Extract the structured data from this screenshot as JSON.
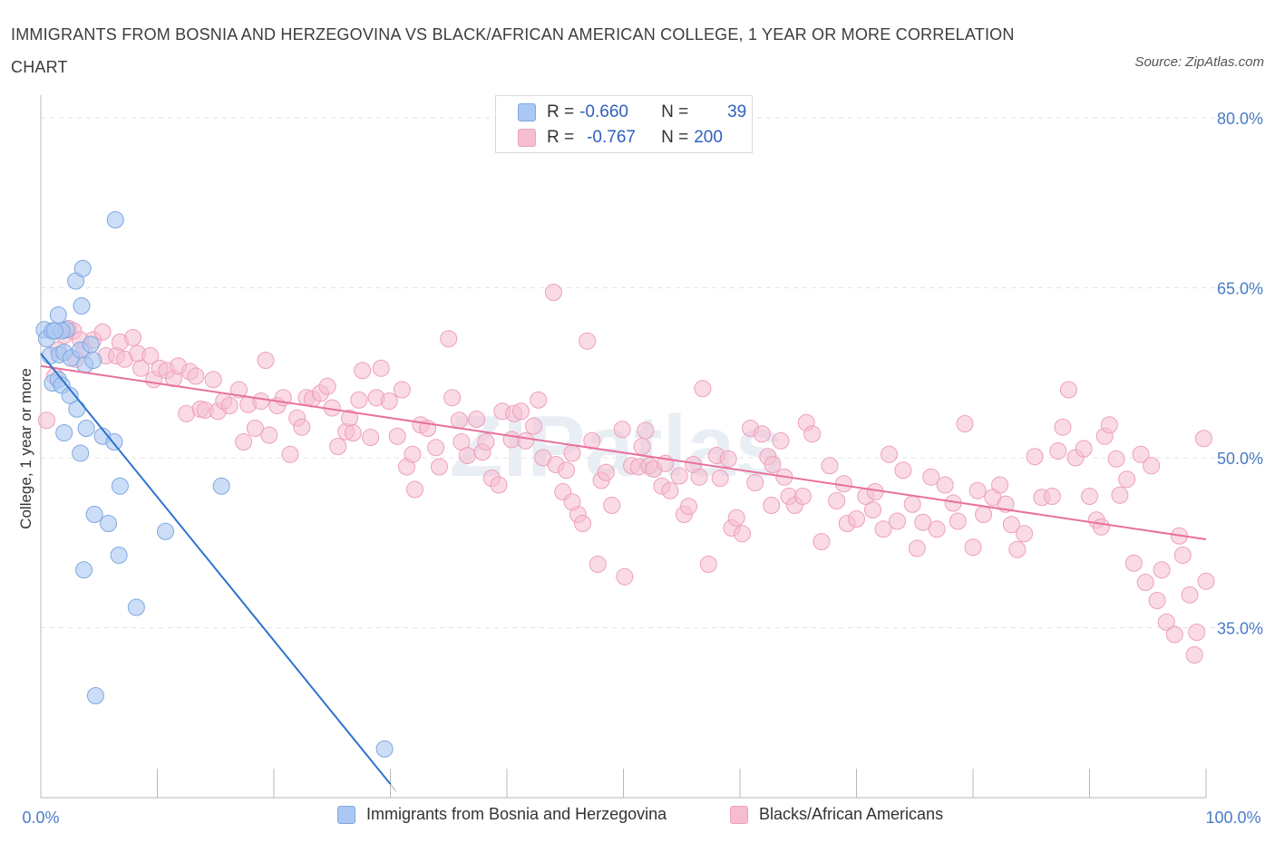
{
  "title": "IMMIGRANTS FROM BOSNIA AND HERZEGOVINA VS BLACK/AFRICAN AMERICAN COLLEGE, 1 YEAR OR MORE CORRELATION CHART",
  "source": "Source: ZipAtlas.com",
  "watermark": "ZIPatlas",
  "legend": {
    "rows": [
      {
        "r_label": "R =",
        "r_value": "-0.660",
        "n_label": "N =",
        "n_value": "39"
      },
      {
        "r_label": "R =",
        "r_value": "-0.767",
        "n_label": "N =",
        "n_value": "200"
      }
    ]
  },
  "bottom_legend": [
    "Immigrants from Bosnia and Herzegovina",
    "Blacks/African Americans"
  ],
  "colors": {
    "blue_fill": "#aac8f2",
    "blue_stroke": "#7fa8e0",
    "blue_line": "#2f74d0",
    "pink_fill": "#f6bdd0",
    "pink_stroke": "#eea0bb",
    "pink_line": "#e8719b",
    "tick_text": "#4a7cc7",
    "grid": "#e3e3e3"
  },
  "chart_data": {
    "type": "scatter",
    "title": "IMMIGRANTS FROM BOSNIA AND HERZEGOVINA VS BLACK/AFRICAN AMERICAN COLLEGE, 1 YEAR OR MORE CORRELATION CHART",
    "xlabel": "",
    "ylabel": "College, 1 year or more",
    "xlim": [
      0,
      100
    ],
    "ylim": [
      20,
      82
    ],
    "x_ticks": [
      "0.0%",
      "100.0%"
    ],
    "y_ticks": [
      {
        "value": 80,
        "label": "80.0%"
      },
      {
        "value": 65,
        "label": "65.0%"
      },
      {
        "value": 50,
        "label": "50.0%"
      },
      {
        "value": 35,
        "label": "35.0%"
      }
    ],
    "grid": true,
    "legend_position": "top-center",
    "series": [
      {
        "name": "Immigrants from Bosnia and Herzegovina",
        "color": "#aac8f2",
        "r": -0.66,
        "n": 39,
        "trend": {
          "x": [
            0.0,
            30.0
          ],
          "y": [
            59.2,
            21.2
          ]
        },
        "points": [
          [
            0.3,
            61.3
          ],
          [
            0.5,
            60.5
          ],
          [
            1.0,
            61.2
          ],
          [
            0.8,
            59.0
          ],
          [
            1.5,
            62.6
          ],
          [
            1.0,
            56.6
          ],
          [
            1.5,
            56.9
          ],
          [
            1.8,
            56.4
          ],
          [
            1.6,
            59.1
          ],
          [
            2.0,
            59.3
          ],
          [
            2.2,
            61.3
          ],
          [
            1.8,
            61.2
          ],
          [
            2.5,
            55.5
          ],
          [
            2.6,
            58.8
          ],
          [
            3.0,
            65.6
          ],
          [
            3.1,
            54.3
          ],
          [
            3.5,
            63.4
          ],
          [
            3.4,
            59.5
          ],
          [
            3.6,
            66.7
          ],
          [
            3.4,
            50.4
          ],
          [
            3.8,
            58.2
          ],
          [
            3.9,
            52.6
          ],
          [
            4.3,
            60.0
          ],
          [
            4.5,
            58.6
          ],
          [
            2.0,
            52.2
          ],
          [
            4.6,
            45.0
          ],
          [
            5.3,
            51.9
          ],
          [
            5.8,
            44.2
          ],
          [
            6.4,
            71.0
          ],
          [
            6.3,
            51.4
          ],
          [
            6.8,
            47.5
          ],
          [
            6.7,
            41.4
          ],
          [
            3.7,
            40.1
          ],
          [
            8.2,
            36.8
          ],
          [
            10.7,
            43.5
          ],
          [
            15.5,
            47.5
          ],
          [
            4.7,
            29.0
          ],
          [
            29.5,
            24.3
          ],
          [
            1.2,
            61.2
          ]
        ]
      },
      {
        "name": "Blacks/African Americans",
        "color": "#f6bdd0",
        "r": -0.767,
        "n": 200,
        "trend": {
          "x": [
            0.0,
            100.0
          ],
          "y": [
            58.1,
            42.8
          ]
        },
        "points": [
          [
            0.5,
            53.3
          ],
          [
            1.2,
            57.2
          ],
          [
            1.5,
            59.5
          ],
          [
            2.0,
            60.8
          ],
          [
            2.4,
            61.4
          ],
          [
            2.8,
            61.2
          ],
          [
            3.0,
            58.7
          ],
          [
            3.4,
            60.4
          ],
          [
            3.7,
            59.5
          ],
          [
            4.5,
            60.4
          ],
          [
            5.3,
            61.1
          ],
          [
            5.6,
            59.0
          ],
          [
            6.5,
            59.0
          ],
          [
            6.8,
            60.2
          ],
          [
            7.2,
            58.7
          ],
          [
            7.9,
            60.6
          ],
          [
            8.3,
            59.2
          ],
          [
            8.6,
            57.9
          ],
          [
            9.4,
            59.0
          ],
          [
            9.7,
            56.9
          ],
          [
            10.2,
            57.9
          ],
          [
            10.8,
            57.7
          ],
          [
            11.4,
            57.0
          ],
          [
            11.8,
            58.1
          ],
          [
            12.5,
            53.9
          ],
          [
            12.8,
            57.6
          ],
          [
            13.3,
            57.2
          ],
          [
            13.7,
            54.3
          ],
          [
            14.1,
            54.2
          ],
          [
            14.8,
            56.9
          ],
          [
            15.2,
            54.1
          ],
          [
            15.7,
            55.0
          ],
          [
            16.2,
            54.6
          ],
          [
            17.0,
            56.0
          ],
          [
            17.4,
            51.4
          ],
          [
            17.8,
            54.7
          ],
          [
            18.4,
            52.6
          ],
          [
            18.9,
            55.0
          ],
          [
            19.3,
            58.6
          ],
          [
            19.6,
            52.0
          ],
          [
            20.3,
            54.6
          ],
          [
            20.8,
            55.3
          ],
          [
            21.4,
            50.3
          ],
          [
            22.0,
            53.5
          ],
          [
            22.4,
            52.7
          ],
          [
            22.8,
            55.3
          ],
          [
            23.3,
            55.2
          ],
          [
            24.0,
            55.7
          ],
          [
            24.6,
            56.3
          ],
          [
            25.0,
            54.4
          ],
          [
            25.5,
            51.0
          ],
          [
            26.2,
            52.3
          ],
          [
            26.5,
            53.5
          ],
          [
            26.8,
            52.2
          ],
          [
            27.3,
            55.1
          ],
          [
            27.6,
            57.7
          ],
          [
            28.3,
            51.8
          ],
          [
            28.8,
            55.3
          ],
          [
            29.2,
            57.9
          ],
          [
            29.9,
            55.0
          ],
          [
            30.6,
            51.9
          ],
          [
            31.0,
            56.0
          ],
          [
            31.4,
            49.2
          ],
          [
            31.9,
            50.3
          ],
          [
            32.1,
            47.2
          ],
          [
            32.6,
            52.9
          ],
          [
            33.2,
            52.6
          ],
          [
            33.9,
            50.9
          ],
          [
            34.2,
            49.2
          ],
          [
            35.0,
            60.5
          ],
          [
            35.3,
            55.3
          ],
          [
            35.9,
            53.3
          ],
          [
            36.1,
            51.4
          ],
          [
            36.6,
            50.2
          ],
          [
            37.4,
            53.4
          ],
          [
            37.9,
            50.5
          ],
          [
            38.2,
            51.4
          ],
          [
            38.7,
            48.2
          ],
          [
            39.3,
            47.6
          ],
          [
            39.6,
            54.1
          ],
          [
            40.4,
            51.6
          ],
          [
            40.6,
            53.9
          ],
          [
            41.2,
            54.1
          ],
          [
            41.6,
            51.5
          ],
          [
            42.3,
            52.8
          ],
          [
            42.7,
            55.1
          ],
          [
            43.1,
            50.0
          ],
          [
            44.0,
            64.6
          ],
          [
            44.2,
            49.4
          ],
          [
            44.8,
            47.0
          ],
          [
            45.1,
            48.9
          ],
          [
            45.6,
            50.4
          ],
          [
            46.1,
            45.0
          ],
          [
            46.5,
            44.2
          ],
          [
            46.9,
            60.3
          ],
          [
            47.3,
            51.5
          ],
          [
            48.1,
            48.0
          ],
          [
            48.5,
            48.7
          ],
          [
            49.0,
            45.8
          ],
          [
            49.9,
            52.5
          ],
          [
            50.1,
            39.5
          ],
          [
            50.7,
            49.3
          ],
          [
            51.3,
            49.2
          ],
          [
            51.9,
            52.4
          ],
          [
            52.2,
            49.3
          ],
          [
            52.6,
            49.0
          ],
          [
            53.3,
            47.5
          ],
          [
            53.6,
            49.5
          ],
          [
            54.0,
            47.1
          ],
          [
            54.8,
            48.4
          ],
          [
            55.2,
            45.0
          ],
          [
            55.6,
            45.7
          ],
          [
            56.0,
            49.4
          ],
          [
            56.5,
            48.3
          ],
          [
            56.8,
            56.1
          ],
          [
            57.3,
            40.6
          ],
          [
            58.0,
            50.2
          ],
          [
            58.3,
            48.2
          ],
          [
            59.0,
            49.9
          ],
          [
            59.3,
            43.8
          ],
          [
            59.7,
            44.7
          ],
          [
            60.2,
            43.3
          ],
          [
            60.9,
            52.6
          ],
          [
            61.3,
            47.8
          ],
          [
            61.9,
            52.1
          ],
          [
            62.4,
            50.1
          ],
          [
            62.8,
            49.4
          ],
          [
            63.5,
            51.5
          ],
          [
            63.8,
            48.3
          ],
          [
            64.2,
            46.6
          ],
          [
            64.7,
            45.8
          ],
          [
            65.4,
            46.6
          ],
          [
            65.7,
            53.1
          ],
          [
            66.2,
            52.1
          ],
          [
            67.0,
            42.6
          ],
          [
            67.7,
            49.3
          ],
          [
            68.3,
            46.2
          ],
          [
            68.9,
            47.7
          ],
          [
            69.2,
            44.2
          ],
          [
            70.0,
            44.6
          ],
          [
            70.8,
            46.6
          ],
          [
            71.4,
            45.4
          ],
          [
            71.6,
            47.0
          ],
          [
            72.3,
            43.7
          ],
          [
            72.8,
            50.3
          ],
          [
            73.5,
            44.4
          ],
          [
            74.0,
            48.9
          ],
          [
            74.8,
            45.9
          ],
          [
            75.2,
            42.0
          ],
          [
            75.7,
            44.3
          ],
          [
            76.4,
            48.3
          ],
          [
            76.9,
            43.7
          ],
          [
            77.6,
            47.6
          ],
          [
            78.3,
            46.0
          ],
          [
            78.7,
            44.4
          ],
          [
            79.3,
            53.0
          ],
          [
            80.0,
            42.1
          ],
          [
            80.4,
            47.1
          ],
          [
            80.9,
            45.0
          ],
          [
            81.7,
            46.5
          ],
          [
            82.3,
            47.6
          ],
          [
            82.8,
            45.9
          ],
          [
            83.3,
            44.1
          ],
          [
            83.8,
            41.9
          ],
          [
            84.4,
            43.3
          ],
          [
            85.3,
            50.1
          ],
          [
            85.9,
            46.5
          ],
          [
            86.8,
            46.6
          ],
          [
            87.3,
            50.6
          ],
          [
            87.7,
            52.7
          ],
          [
            88.2,
            56.0
          ],
          [
            88.8,
            50.0
          ],
          [
            89.5,
            50.8
          ],
          [
            90.0,
            46.6
          ],
          [
            90.6,
            44.5
          ],
          [
            91.0,
            43.9
          ],
          [
            91.3,
            51.9
          ],
          [
            91.7,
            52.9
          ],
          [
            92.3,
            49.9
          ],
          [
            92.6,
            46.7
          ],
          [
            93.2,
            48.1
          ],
          [
            93.8,
            40.7
          ],
          [
            94.4,
            50.3
          ],
          [
            94.8,
            39.0
          ],
          [
            95.3,
            49.3
          ],
          [
            95.8,
            37.4
          ],
          [
            96.2,
            40.1
          ],
          [
            96.6,
            35.5
          ],
          [
            97.3,
            34.4
          ],
          [
            97.7,
            43.1
          ],
          [
            98.0,
            41.4
          ],
          [
            98.6,
            37.9
          ],
          [
            99.2,
            34.6
          ],
          [
            99.8,
            51.7
          ],
          [
            100.0,
            39.1
          ],
          [
            99.0,
            32.6
          ],
          [
            62.7,
            45.8
          ],
          [
            47.8,
            40.6
          ],
          [
            51.6,
            51.0
          ],
          [
            45.6,
            46.1
          ]
        ]
      }
    ]
  }
}
